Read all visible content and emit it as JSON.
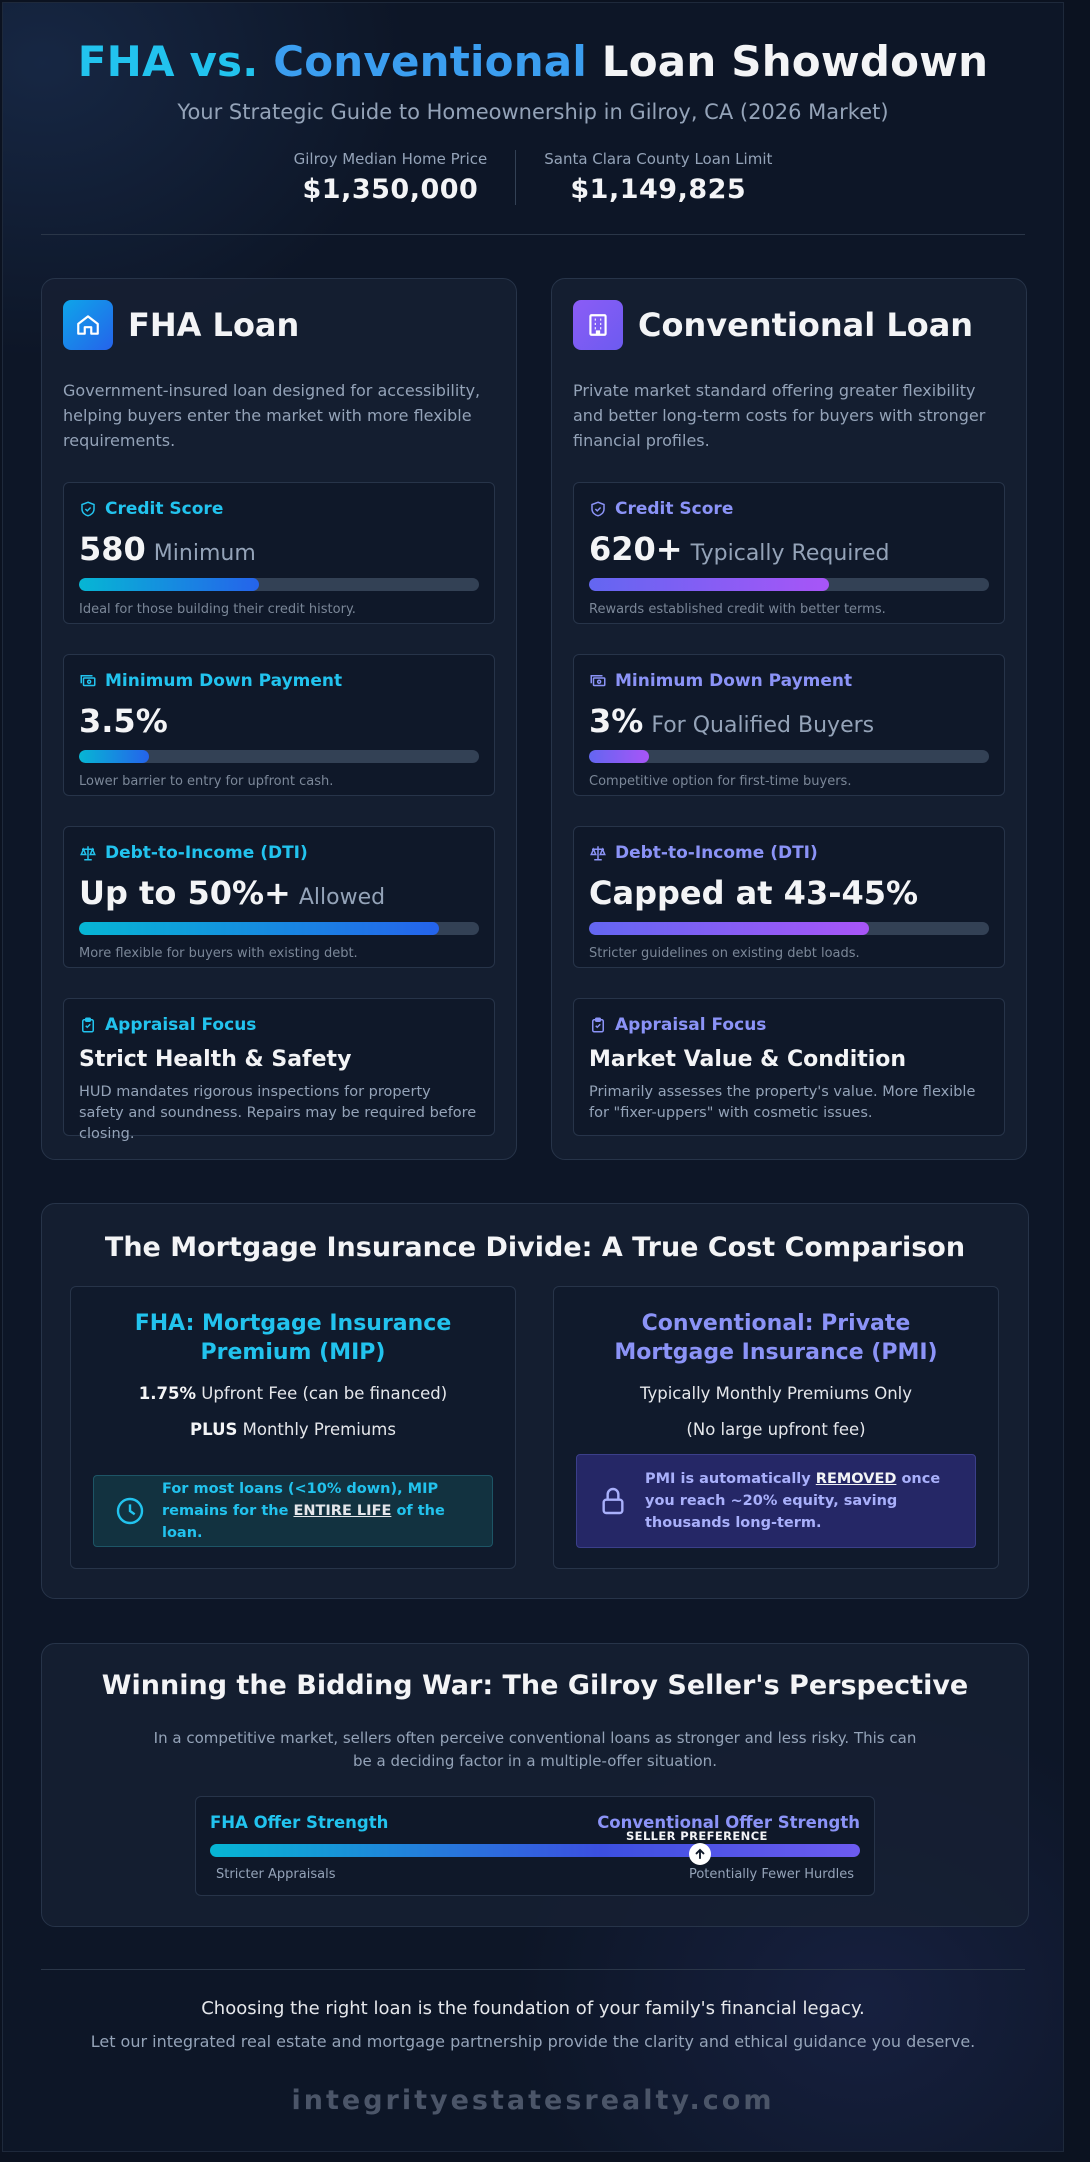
{
  "header": {
    "title_part1": "FHA vs.",
    "title_part2": "Conventional",
    "title_part3": "Loan Showdown",
    "subtitle": "Your Strategic Guide to Homeownership in Gilroy, CA (2026 Market)",
    "stats": [
      {
        "label": "Gilroy Median Home Price",
        "value": "$1,350,000"
      },
      {
        "label": "Santa Clara County Loan Limit",
        "value": "$1,149,825"
      }
    ]
  },
  "fha": {
    "title": "FHA Loan",
    "icon": "home-icon",
    "description": "Government-insured loan designed for accessibility, helping buyers enter the market with more flexible requirements.",
    "credit": {
      "label": "Credit Score",
      "value": "580",
      "suffix": "Minimum",
      "level": 0.45,
      "note": "Ideal for those building their credit history."
    },
    "down": {
      "label": "Minimum Down Payment",
      "value": "3.5%",
      "suffix": "",
      "level": 0.175,
      "note": "Lower barrier to entry for upfront cash."
    },
    "dti": {
      "label": "Debt-to-Income (DTI)",
      "value": "Up to 50%+",
      "suffix": "Allowed",
      "level": 0.9,
      "note": "More flexible for buyers with existing debt."
    },
    "appraisal": {
      "label": "Appraisal Focus",
      "title": "Strict Health & Safety",
      "desc": "HUD mandates rigorous inspections for property safety and soundness. Repairs may be required before closing."
    }
  },
  "conventional": {
    "title": "Conventional Loan",
    "icon": "building-icon",
    "description": "Private market standard offering greater flexibility and better long-term costs for buyers with stronger financial profiles.",
    "credit": {
      "label": "Credit Score",
      "value": "620+",
      "suffix": "Typically Required",
      "level": 0.6,
      "note": "Rewards established credit with better terms."
    },
    "down": {
      "label": "Minimum Down Payment",
      "value": "3%",
      "suffix": "For Qualified Buyers",
      "level": 0.15,
      "note": "Competitive option for first-time buyers."
    },
    "dti": {
      "label": "Debt-to-Income (DTI)",
      "value": "Capped at 43-45%",
      "suffix": "",
      "level": 0.7,
      "note": "Stricter guidelines on existing debt loads."
    },
    "appraisal": {
      "label": "Appraisal Focus",
      "title": "Market Value & Condition",
      "desc": "Primarily assesses the property's value. More flexible for \"fixer-uppers\" with cosmetic issues."
    }
  },
  "insurance": {
    "title": "The Mortgage Insurance Divide: A True Cost Comparison",
    "fha": {
      "title": "FHA: Mortgage Insurance Premium (MIP)",
      "line1_bold": "1.75%",
      "line1_rest": "Upfront Fee (can be financed)",
      "line2_bold": "PLUS",
      "line2_rest": "Monthly Premiums",
      "callout_a": "For most loans (<10% down), MIP remains for the",
      "callout_u": "ENTIRE LIFE",
      "callout_b": "of the loan."
    },
    "conv": {
      "title": "Conventional: Private Mortgage Insurance (PMI)",
      "line1": "Typically Monthly Premiums Only",
      "line2": "(No large upfront fee)",
      "callout_a": "PMI is automatically",
      "callout_u": "REMOVED",
      "callout_b": "once you reach ~20% equity, saving thousands long-term."
    }
  },
  "bidding": {
    "title": "Winning the Bidding War: The Gilroy Seller's Perspective",
    "desc": "In a competitive market, sellers often perceive conventional loans as stronger and less risky. This can be a deciding factor in a multiple-offer situation.",
    "left_label": "FHA Offer Strength",
    "right_label": "Conventional Offer Strength",
    "marker_label": "SELLER PREFERENCE",
    "marker_level": 0.76,
    "left_sub": "Stricter Appraisals",
    "right_sub": "Potentially Fewer Hurdles"
  },
  "footer": {
    "line1": "Choosing the right loan is the foundation of your family's financial legacy.",
    "line2": "Let our integrated real estate and mortgage partnership provide the clarity and ethical guidance you deserve.",
    "site": "integrityestatesrealty.com"
  },
  "colors": {
    "fha_accent": "#22c3ee",
    "conv_accent": "#8b93f7",
    "background": "#0d1627"
  }
}
